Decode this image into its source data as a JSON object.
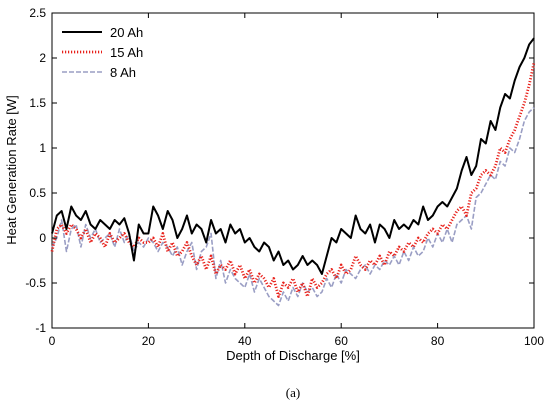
{
  "chart_data": {
    "type": "line",
    "xlabel": "Depth of Discharge [%]",
    "ylabel": "Heat Generation Rate [W]",
    "xlim": [
      0,
      100
    ],
    "ylim": [
      -1,
      2.5
    ],
    "xticks": [
      0,
      20,
      40,
      60,
      80,
      100
    ],
    "yticks": [
      -1,
      -0.5,
      0,
      0.5,
      1,
      1.5,
      2,
      2.5
    ],
    "grid": false,
    "legend_position": "top-left",
    "series": [
      {
        "name": "20 Ah",
        "color": "#000000",
        "style": "solid",
        "x": [
          0,
          1,
          2,
          3,
          4,
          5,
          6,
          7,
          8,
          9,
          10,
          11,
          12,
          13,
          14,
          15,
          16,
          17,
          18,
          19,
          20,
          21,
          22,
          23,
          24,
          25,
          26,
          27,
          28,
          29,
          30,
          31,
          32,
          33,
          34,
          35,
          36,
          37,
          38,
          39,
          40,
          41,
          42,
          43,
          44,
          45,
          46,
          47,
          48,
          49,
          50,
          51,
          52,
          53,
          54,
          55,
          56,
          57,
          58,
          59,
          60,
          61,
          62,
          63,
          64,
          65,
          66,
          67,
          68,
          69,
          70,
          71,
          72,
          73,
          74,
          75,
          76,
          77,
          78,
          79,
          80,
          81,
          82,
          83,
          84,
          85,
          86,
          87,
          88,
          89,
          90,
          91,
          92,
          93,
          94,
          95,
          96,
          97,
          98,
          99,
          100
        ],
        "y": [
          0.05,
          0.25,
          0.3,
          0.1,
          0.35,
          0.25,
          0.2,
          0.3,
          0.15,
          0.1,
          0.2,
          0.15,
          0.1,
          0.2,
          0.15,
          0.22,
          0.05,
          -0.25,
          0.15,
          0.05,
          0.05,
          0.35,
          0.25,
          0.1,
          0.3,
          0.2,
          0.0,
          0.1,
          0.25,
          0.05,
          0.15,
          0.1,
          -0.05,
          0.2,
          0.05,
          0.1,
          -0.05,
          0.15,
          0.05,
          0.1,
          -0.05,
          0.0,
          -0.1,
          -0.15,
          -0.05,
          -0.1,
          -0.25,
          -0.15,
          -0.3,
          -0.25,
          -0.35,
          -0.3,
          -0.2,
          -0.3,
          -0.25,
          -0.3,
          -0.4,
          -0.2,
          0.0,
          -0.05,
          0.1,
          0.05,
          0.0,
          0.25,
          0.1,
          0.05,
          0.15,
          -0.05,
          0.15,
          0.1,
          0.0,
          0.2,
          0.1,
          0.15,
          0.1,
          0.2,
          0.15,
          0.35,
          0.2,
          0.25,
          0.35,
          0.4,
          0.35,
          0.45,
          0.55,
          0.75,
          0.9,
          0.7,
          0.8,
          1.1,
          1.05,
          1.3,
          1.2,
          1.45,
          1.6,
          1.55,
          1.75,
          1.9,
          2.0,
          2.15,
          2.22
        ]
      },
      {
        "name": "15 Ah",
        "color": "#e8211b",
        "style": "dotted",
        "x": [
          0,
          1,
          2,
          3,
          4,
          5,
          6,
          7,
          8,
          9,
          10,
          11,
          12,
          13,
          14,
          15,
          16,
          17,
          18,
          19,
          20,
          21,
          22,
          23,
          24,
          25,
          26,
          27,
          28,
          29,
          30,
          31,
          32,
          33,
          34,
          35,
          36,
          37,
          38,
          39,
          40,
          41,
          42,
          43,
          44,
          45,
          46,
          47,
          48,
          49,
          50,
          51,
          52,
          53,
          54,
          55,
          56,
          57,
          58,
          59,
          60,
          61,
          62,
          63,
          64,
          65,
          66,
          67,
          68,
          69,
          70,
          71,
          72,
          73,
          74,
          75,
          76,
          77,
          78,
          79,
          80,
          81,
          82,
          83,
          84,
          85,
          86,
          87,
          88,
          89,
          90,
          91,
          92,
          93,
          94,
          95,
          96,
          97,
          98,
          99,
          100
        ],
        "y": [
          -0.15,
          0.1,
          0.15,
          0.05,
          0.15,
          0.1,
          0.0,
          0.1,
          -0.05,
          0.05,
          0.0,
          -0.1,
          0.05,
          -0.05,
          0.0,
          0.05,
          -0.05,
          -0.1,
          0.0,
          -0.05,
          -0.05,
          0.0,
          -0.1,
          0.05,
          -0.15,
          -0.05,
          -0.2,
          -0.15,
          -0.05,
          -0.2,
          -0.3,
          -0.2,
          -0.35,
          -0.2,
          -0.4,
          -0.3,
          -0.35,
          -0.25,
          -0.4,
          -0.3,
          -0.45,
          -0.35,
          -0.5,
          -0.4,
          -0.45,
          -0.55,
          -0.45,
          -0.65,
          -0.5,
          -0.55,
          -0.45,
          -0.6,
          -0.5,
          -0.65,
          -0.45,
          -0.55,
          -0.5,
          -0.4,
          -0.35,
          -0.45,
          -0.3,
          -0.4,
          -0.35,
          -0.2,
          -0.3,
          -0.35,
          -0.25,
          -0.3,
          -0.2,
          -0.3,
          -0.15,
          -0.2,
          -0.1,
          -0.15,
          -0.05,
          -0.1,
          0.0,
          -0.05,
          0.05,
          0.1,
          0.05,
          0.15,
          0.1,
          0.2,
          0.3,
          0.35,
          0.25,
          0.5,
          0.55,
          0.7,
          0.75,
          0.7,
          0.8,
          1.0,
          0.95,
          1.1,
          1.2,
          1.35,
          1.5,
          1.7,
          1.95
        ]
      },
      {
        "name": "8 Ah",
        "color": "#9a9ec4",
        "style": "dashed",
        "x": [
          0,
          1,
          2,
          3,
          4,
          5,
          6,
          7,
          8,
          9,
          10,
          11,
          12,
          13,
          14,
          15,
          16,
          17,
          18,
          19,
          20,
          21,
          22,
          23,
          24,
          25,
          26,
          27,
          28,
          29,
          30,
          31,
          32,
          33,
          34,
          35,
          36,
          37,
          38,
          39,
          40,
          41,
          42,
          43,
          44,
          45,
          46,
          47,
          48,
          49,
          50,
          51,
          52,
          53,
          54,
          55,
          56,
          57,
          58,
          59,
          60,
          61,
          62,
          63,
          64,
          65,
          66,
          67,
          68,
          69,
          70,
          71,
          72,
          73,
          74,
          75,
          76,
          77,
          78,
          79,
          80,
          81,
          82,
          83,
          84,
          85,
          86,
          87,
          88,
          89,
          90,
          91,
          92,
          93,
          94,
          95,
          96,
          97,
          98,
          99,
          100
        ],
        "y": [
          -0.1,
          0.0,
          0.2,
          -0.15,
          0.1,
          0.15,
          -0.1,
          0.15,
          0.0,
          0.1,
          -0.05,
          0.0,
          0.05,
          -0.1,
          0.1,
          -0.05,
          0.05,
          -0.15,
          -0.05,
          -0.1,
          0.0,
          -0.05,
          -0.15,
          -0.05,
          -0.1,
          -0.2,
          -0.1,
          -0.3,
          -0.15,
          -0.05,
          -0.35,
          -0.15,
          -0.1,
          0.05,
          -0.45,
          -0.25,
          -0.5,
          -0.35,
          -0.45,
          -0.5,
          -0.55,
          -0.4,
          -0.6,
          -0.45,
          -0.55,
          -0.65,
          -0.7,
          -0.75,
          -0.6,
          -0.7,
          -0.55,
          -0.65,
          -0.5,
          -0.6,
          -0.55,
          -0.65,
          -0.6,
          -0.45,
          -0.55,
          -0.4,
          -0.5,
          -0.35,
          -0.4,
          -0.45,
          -0.35,
          -0.3,
          -0.4,
          -0.3,
          -0.35,
          -0.25,
          -0.3,
          -0.2,
          -0.3,
          -0.15,
          -0.25,
          -0.1,
          -0.2,
          -0.15,
          0.0,
          -0.1,
          0.05,
          -0.05,
          0.1,
          -0.05,
          0.15,
          0.2,
          0.25,
          0.1,
          0.45,
          0.5,
          0.6,
          0.7,
          0.65,
          0.85,
          0.8,
          1.0,
          0.95,
          1.1,
          1.3,
          1.4,
          1.45
        ]
      }
    ]
  },
  "figure": {
    "caption": "(a)"
  }
}
